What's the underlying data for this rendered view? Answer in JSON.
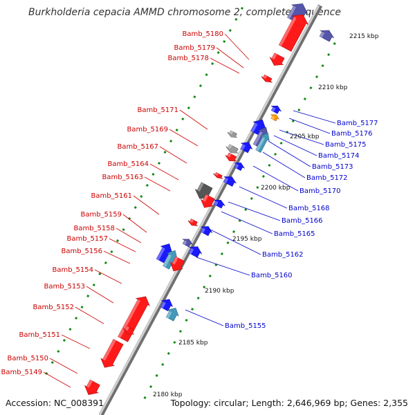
{
  "title": "Burkholderia cepacia AMMD chromosome 2, complete sequence",
  "accession": "Accession: NC_008391",
  "topology": "Topology: circular; Length: 2,646,969 bp; Genes: 2,355",
  "colors": {
    "forward_gene": "#ff1a1a",
    "reverse_gene": "#1a1aff",
    "label_forward": "#cc0000",
    "label_reverse": "#0000cc",
    "backbone": "#999999",
    "tick": "#118811",
    "orange_gene": "#ff9900",
    "purple_gene": "#5555aa",
    "gray_gene": "#999999",
    "teal_gene": "#4499bb"
  },
  "forward_labels": [
    "Bamb_5180",
    "Bamb_5179",
    "Bamb_5178",
    "Bamb_5171",
    "Bamb_5169",
    "Bamb_5167",
    "Bamb_5164",
    "Bamb_5163",
    "Bamb_5161",
    "Bamb_5159",
    "Bamb_5158",
    "Bamb_5157",
    "Bamb_5156",
    "Bamb_5154",
    "Bamb_5153",
    "Bamb_5152",
    "Bamb_5151",
    "Bamb_5150",
    "Bamb_5149"
  ],
  "reverse_labels": [
    "Bamb_5177",
    "Bamb_5176",
    "Bamb_5175",
    "Bamb_5174",
    "Bamb_5173",
    "Bamb_5172",
    "Bamb_5170",
    "Bamb_5168",
    "Bamb_5166",
    "Bamb_5165",
    "Bamb_5162",
    "Bamb_5160",
    "Bamb_5155"
  ],
  "scale_labels": [
    "2215 kbp",
    "2210 kbp",
    "2205 kbp",
    "2200 kbp",
    "2195 kbp",
    "2190 kbp",
    "2185 kbp",
    "2180 kbp"
  ]
}
